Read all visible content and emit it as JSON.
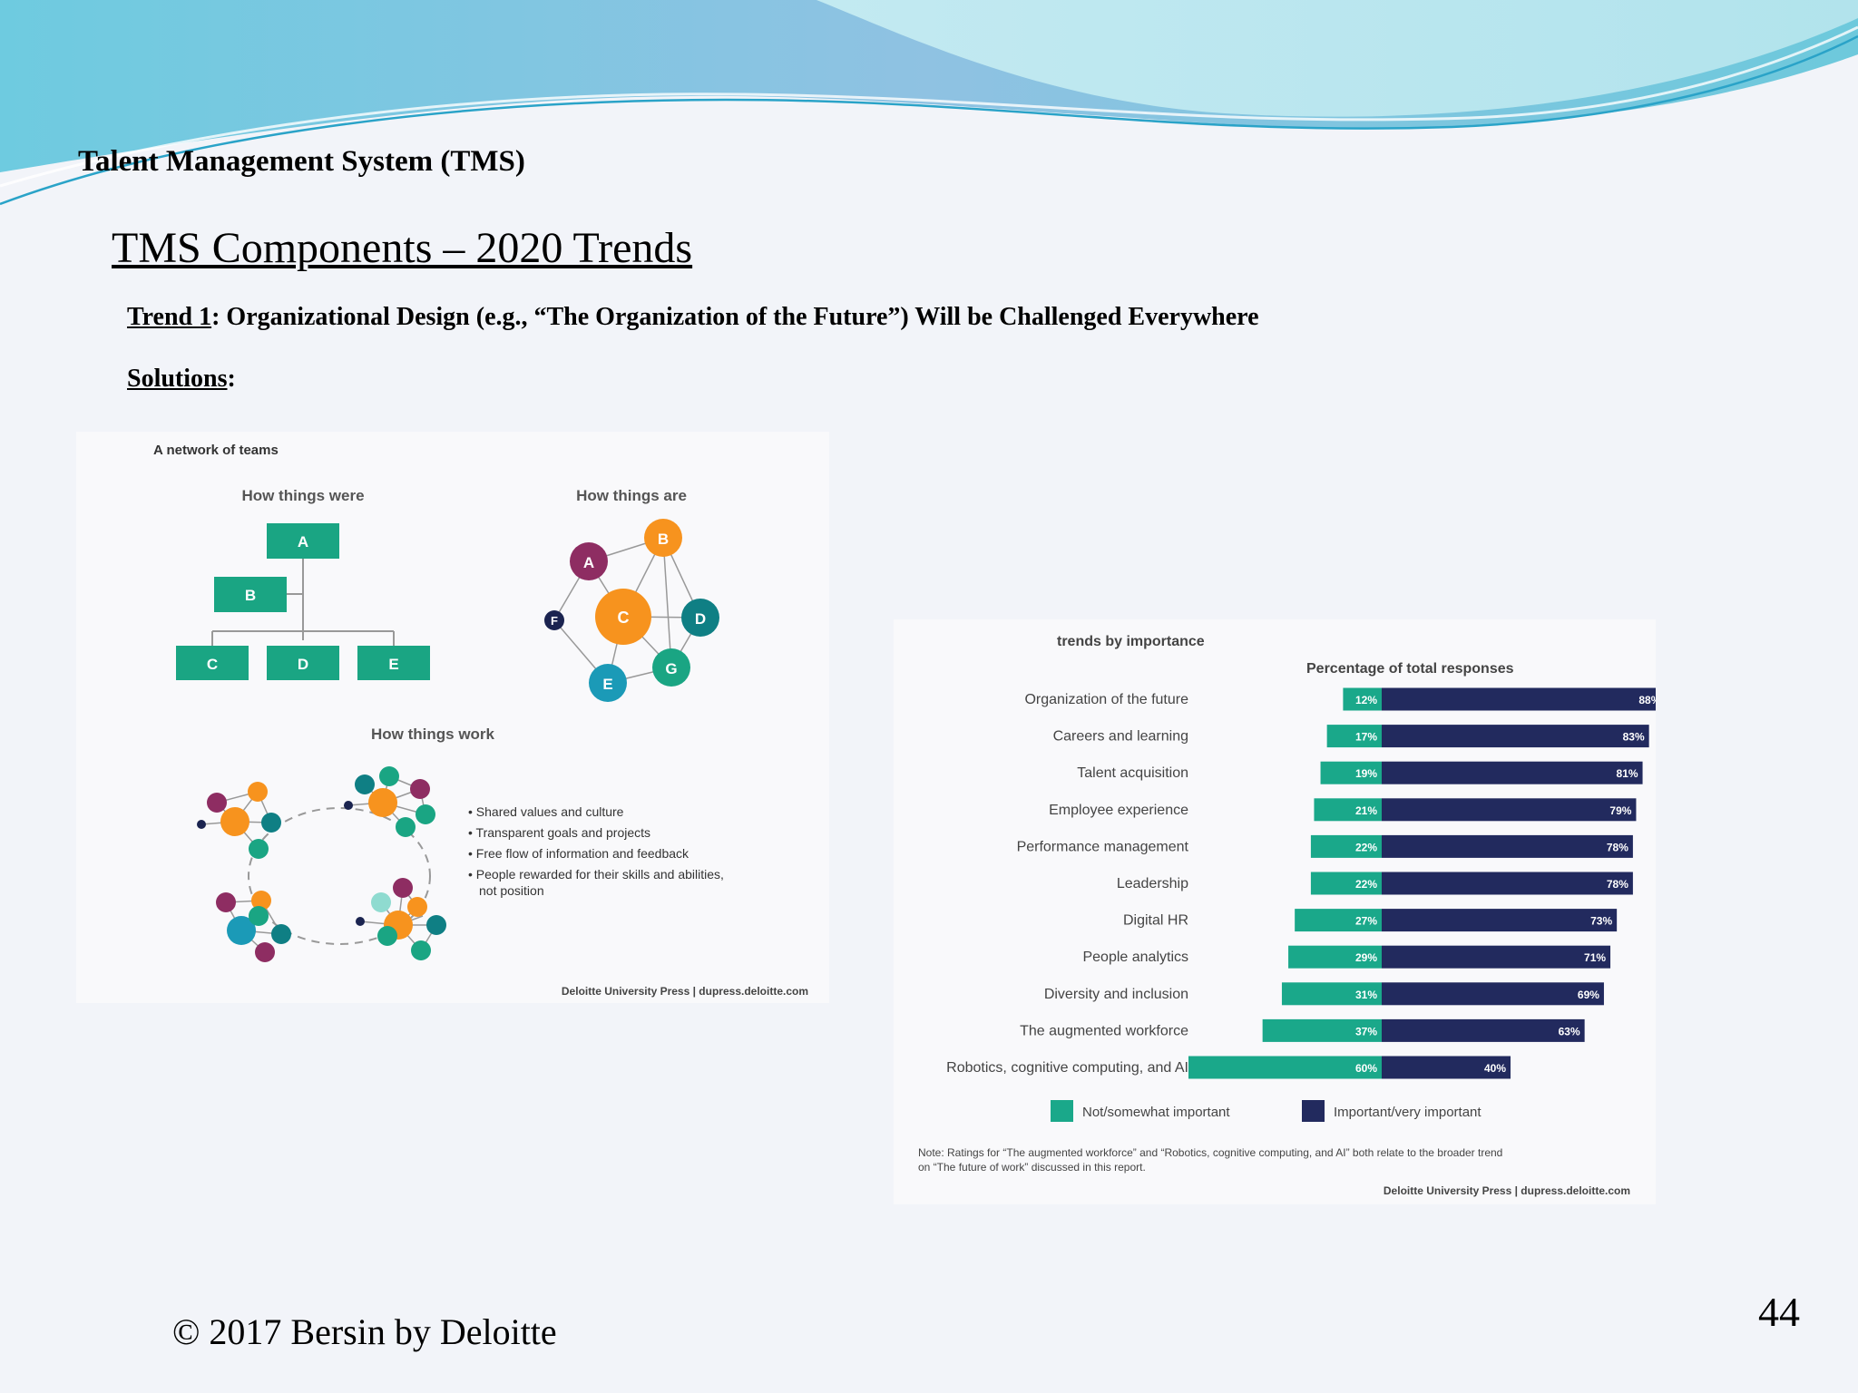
{
  "header": {
    "label": "Talent Management System (TMS)",
    "title": "TMS Components – 2020 Trends"
  },
  "trend": {
    "prefix": "Trend 1",
    "text": ": Organizational Design (e.g., “The Organization of the Future”) Will be Challenged Everywhere"
  },
  "solutions": {
    "label": "Solutions",
    "suffix": ":"
  },
  "teams_figure": {
    "title": "A network of teams",
    "were_heading": "How things were",
    "are_heading": "How things are",
    "work_heading": "How things work",
    "org_nodes": [
      "A",
      "B",
      "C",
      "D",
      "E"
    ],
    "network_nodes": [
      "A",
      "B",
      "C",
      "D",
      "E",
      "F",
      "G"
    ],
    "bullets": [
      "Shared values and culture",
      "Transparent goals and projects",
      "Free flow of information and  feedback",
      "People rewarded for their skills and abilities,",
      "not position"
    ],
    "source": "Deloitte University Press  |  dupress.deloitte.com",
    "colors": {
      "green": "#1aa583",
      "orange": "#f7931e",
      "purple": "#8e2d62",
      "teal": "#0f7f84",
      "navy": "#1b2450",
      "blue": "#1b9ab7"
    }
  },
  "chart_data": {
    "type": "bar",
    "title": "trends by importance",
    "subtitle": "Percentage of total responses",
    "categories": [
      "Organization of the future",
      "Careers and learning",
      "Talent acquisition",
      "Employee experience",
      "Performance management",
      "Leadership",
      "Digital HR",
      "People analytics",
      "Diversity and inclusion",
      "The augmented workforce",
      "Robotics, cognitive computing, and AI"
    ],
    "series": [
      {
        "name": "Not/somewhat important",
        "color": "#1aa88a",
        "values": [
          12,
          17,
          19,
          21,
          22,
          22,
          27,
          29,
          31,
          37,
          60
        ]
      },
      {
        "name": "Important/very important",
        "color": "#222a5e",
        "values": [
          88,
          83,
          81,
          79,
          78,
          78,
          73,
          71,
          69,
          63,
          40
        ]
      }
    ],
    "stacked": "diverging",
    "legend": "bottom",
    "note_lines": [
      "Note: Ratings for “The augmented workforce” and “Robotics, cognitive computing, and AI” both relate to the broader trend",
      "on “The future of work” discussed in this report."
    ],
    "source": "Deloitte University Press  |  dupress.deloitte.com"
  }
}
